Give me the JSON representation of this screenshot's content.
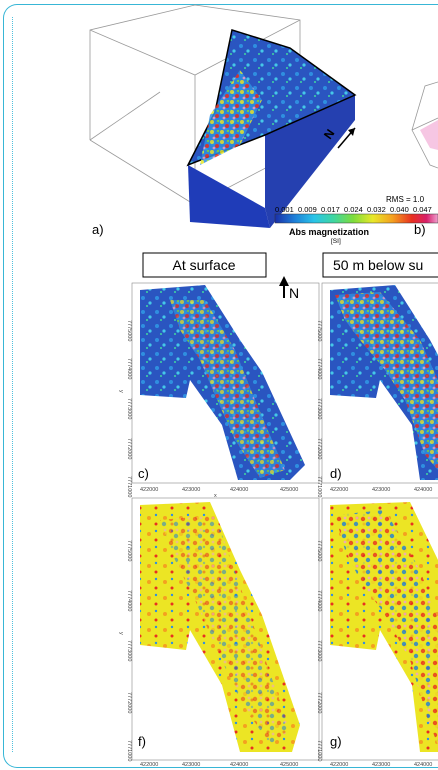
{
  "figure": {
    "panel_labels": [
      "a)",
      "b)",
      "c)",
      "d)",
      "f)",
      "g)"
    ],
    "column_headers": [
      "At surface",
      "50 m below su"
    ],
    "north_label": "N",
    "colorbar": {
      "rms": "RMS = 1.0",
      "ticks": [
        "0.001",
        "0.009",
        "0.017",
        "0.024",
        "0.032",
        "0.040",
        "0.047"
      ],
      "title": "Abs magnetization",
      "unit": "[SI]",
      "colors": [
        "#1a2fa8",
        "#1e7fd8",
        "#29c4e8",
        "#3fd6a0",
        "#7ddc3c",
        "#e8e82a",
        "#f4a020",
        "#e83020",
        "#d8206a",
        "#f0a0d0"
      ]
    },
    "map_x_ticks_c": [
      "422000",
      "423000",
      "424000",
      "425000"
    ],
    "map_x_ticks_d": [
      "422000",
      "423000",
      "424000"
    ],
    "map_y_ticks": [
      "7775000",
      "7774000",
      "7773000",
      "7772000",
      "7771000"
    ],
    "axis_x": "x",
    "axis_y": "y"
  }
}
